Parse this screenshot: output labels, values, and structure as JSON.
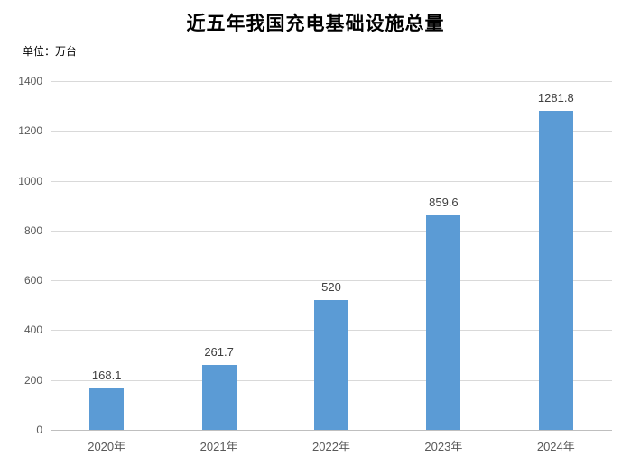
{
  "chart_data": {
    "type": "bar",
    "title": "近五年我国充电基础设施总量",
    "unit_label": "单位：万台",
    "categories": [
      "2020年",
      "2021年",
      "2022年",
      "2023年",
      "2024年"
    ],
    "values": [
      168.1,
      261.7,
      520,
      859.6,
      1281.8
    ],
    "value_labels": [
      "168.1",
      "261.7",
      "520",
      "859.6",
      "1281.8"
    ],
    "xlabel": "",
    "ylabel": "",
    "ylim": [
      0,
      1400
    ],
    "yticks": [
      0,
      200,
      400,
      600,
      800,
      1000,
      1200,
      1400
    ],
    "grid": true,
    "legend": "none",
    "colors": {
      "bar": "#5b9bd5",
      "gridline": "#d9d9d9",
      "axis_line": "#bfbfbf",
      "tick_label": "#595959",
      "data_label": "#404040",
      "title": "#000000",
      "background": "#ffffff"
    }
  }
}
